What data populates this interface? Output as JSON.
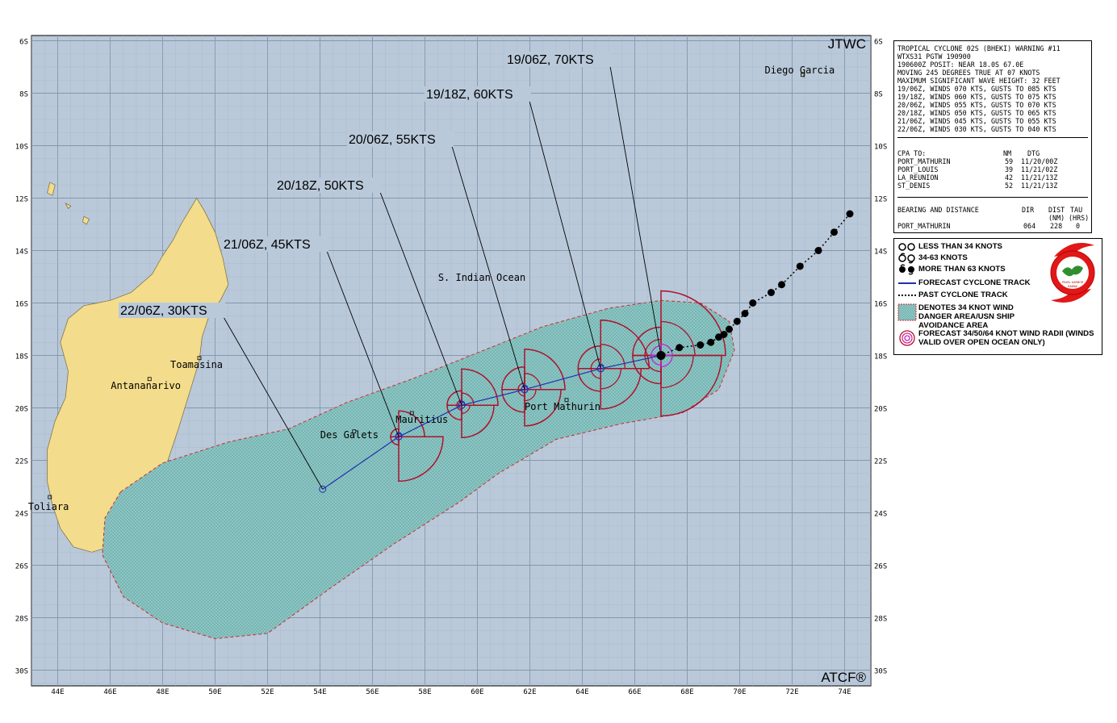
{
  "header": {
    "agency": "JTWC",
    "footer_brand": "ATCF®"
  },
  "map": {
    "lat_labels": [
      "6S",
      "8S",
      "10S",
      "12S",
      "14S",
      "16S",
      "18S",
      "20S",
      "22S",
      "24S",
      "26S",
      "28S",
      "30S"
    ],
    "lon_labels": [
      "44E",
      "46E",
      "48E",
      "50E",
      "52E",
      "54E",
      "56E",
      "58E",
      "60E",
      "62E",
      "64E",
      "66E",
      "68E",
      "70E",
      "72E",
      "74E"
    ],
    "places": [
      {
        "name": "Diego Garcia",
        "lat": -7.3,
        "lon": 72.4
      },
      {
        "name": "Toamasina",
        "lat": -18.1,
        "lon": 49.4
      },
      {
        "name": "Antananarivo",
        "lat": -18.9,
        "lon": 47.5
      },
      {
        "name": "Toliara",
        "lat": -23.4,
        "lon": 43.7
      },
      {
        "name": "Mauritius",
        "lat": -20.2,
        "lon": 57.5
      },
      {
        "name": "Des Galets",
        "lat": -20.9,
        "lon": 55.3
      },
      {
        "name": "Port Mathurin",
        "lat": -19.7,
        "lon": 63.4
      }
    ],
    "ocean_label": "S. Indian Ocean",
    "forecast_labels": [
      {
        "text": "19/06Z, 70KTS",
        "lat": -18.0,
        "lon": 67.0
      },
      {
        "text": "19/18Z, 60KTS",
        "lat": -18.5,
        "lon": 64.7
      },
      {
        "text": "20/06Z, 55KTS",
        "lat": -19.3,
        "lon": 61.8
      },
      {
        "text": "20/18Z, 50KTS",
        "lat": -19.9,
        "lon": 59.4
      },
      {
        "text": "21/06Z, 45KTS",
        "lat": -21.1,
        "lon": 57.0
      },
      {
        "text": "22/06Z, 30KTS",
        "lat": -23.1,
        "lon": 54.1
      }
    ],
    "forecast_track": [
      {
        "lat": -18.0,
        "lon": 67.0
      },
      {
        "lat": -18.5,
        "lon": 64.7
      },
      {
        "lat": -19.3,
        "lon": 61.8
      },
      {
        "lat": -19.9,
        "lon": 59.4
      },
      {
        "lat": -21.1,
        "lon": 57.0
      },
      {
        "lat": -23.1,
        "lon": 54.1
      }
    ],
    "past_track": [
      {
        "lat": -12.6,
        "lon": 74.2
      },
      {
        "lat": -13.3,
        "lon": 73.6
      },
      {
        "lat": -14.0,
        "lon": 73.0
      },
      {
        "lat": -14.6,
        "lon": 72.3
      },
      {
        "lat": -15.3,
        "lon": 71.6
      },
      {
        "lat": -15.6,
        "lon": 71.2
      },
      {
        "lat": -16.0,
        "lon": 70.5
      },
      {
        "lat": -16.4,
        "lon": 70.2
      },
      {
        "lat": -16.7,
        "lon": 69.9
      },
      {
        "lat": -17.0,
        "lon": 69.6
      },
      {
        "lat": -17.2,
        "lon": 69.4
      },
      {
        "lat": -17.3,
        "lon": 69.2
      },
      {
        "lat": -17.5,
        "lon": 68.9
      },
      {
        "lat": -17.6,
        "lon": 68.5
      },
      {
        "lat": -17.7,
        "lon": 67.7
      },
      {
        "lat": -18.0,
        "lon": 67.0
      }
    ],
    "colors": {
      "ocean": "#b9c9da",
      "grid": "#94a6bb",
      "land": "#f3dc8b",
      "land_edge": "#7a6a3a",
      "danger_fill": "#8fc9c7",
      "danger_edge": "#d22a2a",
      "radii": "#b0102c",
      "track": "#1f2fb0",
      "r64": "#c020d0"
    }
  },
  "warning": {
    "lines": [
      "TROPICAL CYCLONE 02S (BHEKI) WARNING #11",
      "WTXS31 PGTW 190900",
      "190600Z POSIT: NEAR 18.0S 67.0E",
      "MOVING 245 DEGREES TRUE AT 07 KNOTS",
      "MAXIMUM SIGNIFICANT WAVE HEIGHT: 32 FEET",
      "19/06Z, WINDS 070 KTS, GUSTS TO 085 KTS",
      "19/18Z, WINDS 060 KTS, GUSTS TO 075 KTS",
      "20/06Z, WINDS 055 KTS, GUSTS TO 070 KTS",
      "20/18Z, WINDS 050 KTS, GUSTS TO 065 KTS",
      "21/06Z, WINDS 045 KTS, GUSTS TO 055 KTS",
      "22/06Z, WINDS 030 KTS, GUSTS TO 040 KTS"
    ],
    "cpa": {
      "header": {
        "label": "CPA TO:",
        "nm": "NM",
        "dtg": "DTG"
      },
      "rows": [
        {
          "place": "PORT_MATHURIN",
          "nm": "59",
          "dtg": "11/20/00Z"
        },
        {
          "place": "PORT_LOUIS",
          "nm": "39",
          "dtg": "11/21/02Z"
        },
        {
          "place": "LA_REUNION",
          "nm": "42",
          "dtg": "11/21/13Z"
        },
        {
          "place": "ST_DENIS",
          "nm": "52",
          "dtg": "11/21/13Z"
        }
      ]
    },
    "bearing": {
      "title": "BEARING AND DISTANCE",
      "col_dir": "DIR",
      "col_dist": "DIST",
      "col_tau": "TAU",
      "unit_dist": "(NM)",
      "unit_tau": "(HRS)",
      "place": "PORT_MATHURIN",
      "dir": "064",
      "dist": "228",
      "tau": "0"
    }
  },
  "legend": {
    "items": [
      "LESS THAN 34 KNOTS",
      "34-63 KNOTS",
      "MORE THAN 63 KNOTS",
      "FORECAST CYCLONE TRACK",
      "PAST CYCLONE TRACK",
      "DENOTES 34 KNOT WIND DANGER AREA/USN SHIP AVOIDANCE AREA",
      "FORECAST 34/50/64 KNOT WIND RADII (WINDS VALID OVER OPEN OCEAN ONLY)"
    ],
    "seal_text": [
      "PEARL HARBOR",
      "HAWAII"
    ]
  }
}
